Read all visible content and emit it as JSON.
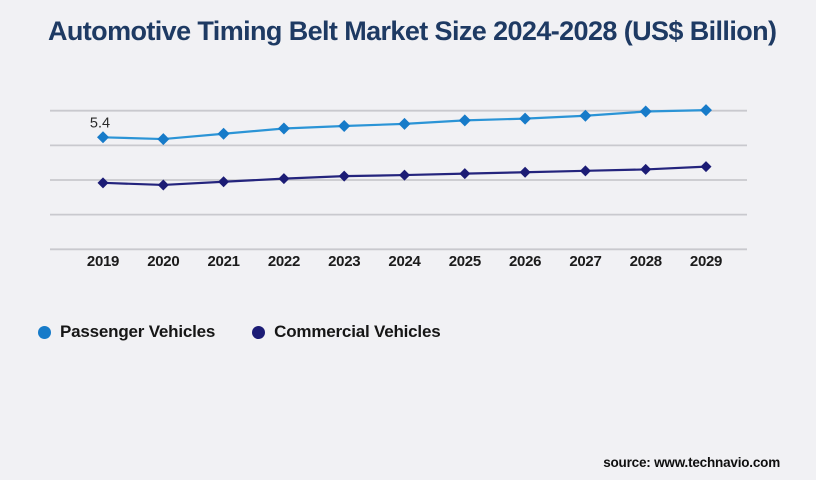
{
  "page": {
    "background_color": "#f1f1f4",
    "gridline_color": "#c9c9ce"
  },
  "header": {
    "title": "Automotive Timing Belt Market Size 2024-2028 (US$ Billion)",
    "title_color": "#1e3a63"
  },
  "chart_data": {
    "type": "line",
    "title": "Automotive Timing Belt Market Size 2024-2028 (US$ Billion)",
    "xlabel": "",
    "ylabel": "",
    "unit": "US$ Billion",
    "grid": "horizontal-only",
    "y_axis_labels_visible": false,
    "ylim": [
      2.2,
      6.3
    ],
    "legend_position": "bottom-left",
    "categories": [
      "2019",
      "2020",
      "2021",
      "2022",
      "2023",
      "2024",
      "2025",
      "2026",
      "2027",
      "2028",
      "2029"
    ],
    "series": [
      {
        "name": "Passenger Vehicles",
        "marker": "diamond",
        "marker_size": 6,
        "color": "#177bc9",
        "line_color": "#2b94d6",
        "values": [
          5.4,
          5.35,
          5.5,
          5.65,
          5.72,
          5.78,
          5.88,
          5.93,
          6.01,
          6.13,
          6.17
        ]
      },
      {
        "name": "Commercial Vehicles",
        "marker": "diamond",
        "marker_size": 5.5,
        "color": "#1c1c75",
        "line_color": "#24247d",
        "values": [
          4.11,
          4.05,
          4.14,
          4.23,
          4.3,
          4.33,
          4.37,
          4.41,
          4.45,
          4.49,
          4.57
        ]
      }
    ],
    "point_label": {
      "series_index": 0,
      "point_index": 0,
      "text": "5.4"
    }
  },
  "footer": {
    "source_label": "source: www.technavio.com"
  }
}
